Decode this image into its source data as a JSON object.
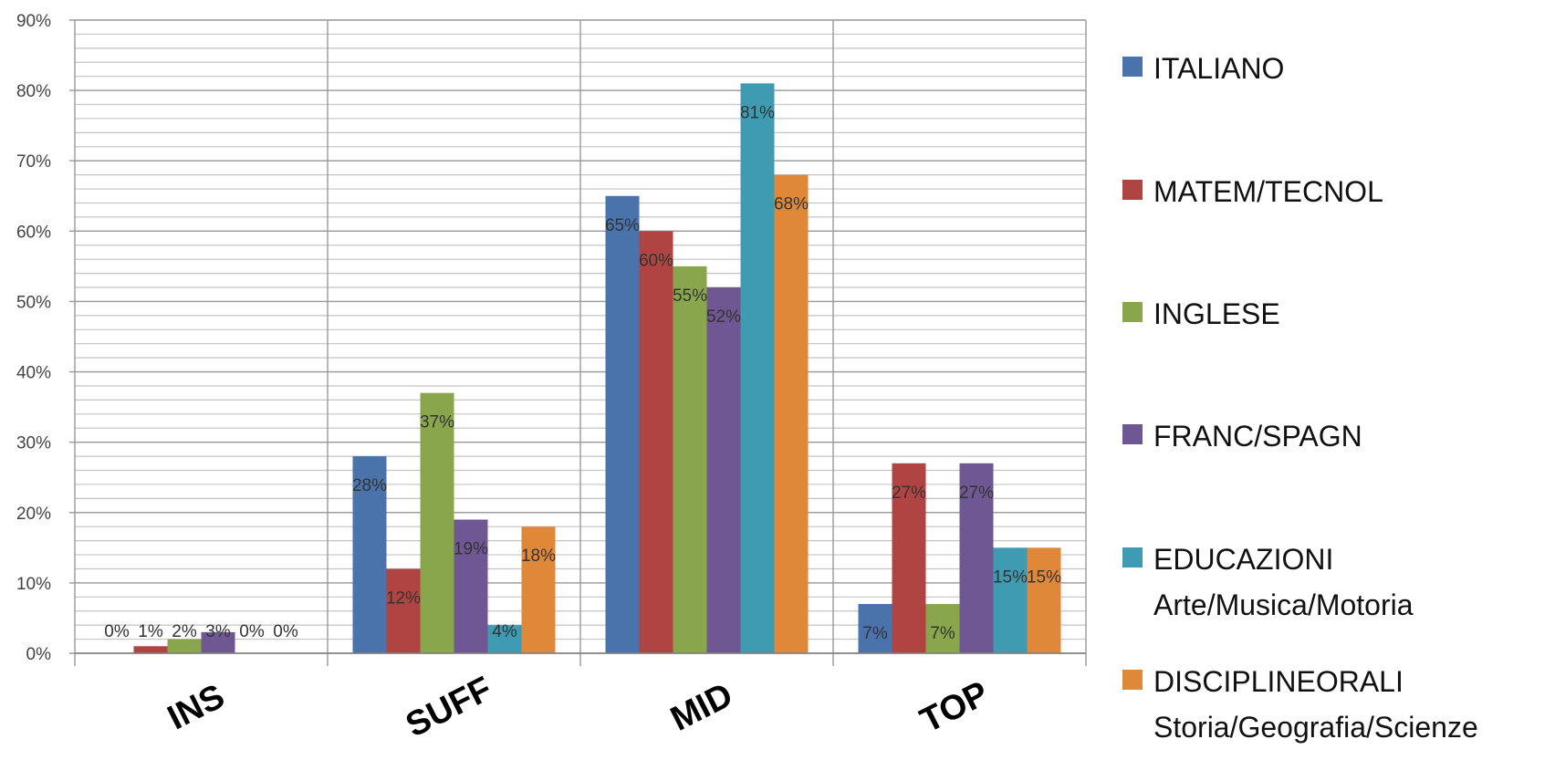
{
  "chart_data": {
    "type": "bar",
    "categories": [
      "INS",
      "SUFF",
      "MID",
      "TOP"
    ],
    "ylim": [
      0,
      90
    ],
    "y_ticks": [
      "0%",
      "10%",
      "20%",
      "30%",
      "40%",
      "50%",
      "60%",
      "70%",
      "80%",
      "90%"
    ],
    "grid": true,
    "legend_position": "right",
    "series": [
      {
        "name": "ITALIANO",
        "name_line2": "",
        "color": "#4a73ab",
        "values": [
          0,
          28,
          65,
          7
        ],
        "labels": [
          "0%",
          "28%",
          "65%",
          "7%"
        ]
      },
      {
        "name": "MATEM/TECNOL",
        "name_line2": "",
        "color": "#b04442",
        "values": [
          1,
          12,
          60,
          27
        ],
        "labels": [
          "1%",
          "12%",
          "60%",
          "27%"
        ]
      },
      {
        "name": "INGLESE",
        "name_line2": "",
        "color": "#8aa64d",
        "values": [
          2,
          37,
          55,
          7
        ],
        "labels": [
          "2%",
          "37%",
          "55%",
          "7%"
        ]
      },
      {
        "name": "FRANC/SPAGN",
        "name_line2": "",
        "color": "#6e5792",
        "values": [
          3,
          19,
          52,
          27
        ],
        "labels": [
          "3%",
          "19%",
          "52%",
          "27%"
        ]
      },
      {
        "name": "EDUCAZIONI",
        "name_line2": "Arte/Musica/Motoria",
        "color": "#3e9bb2",
        "values": [
          0,
          4,
          81,
          15
        ],
        "labels": [
          "0%",
          "4%",
          "81%",
          "15%"
        ]
      },
      {
        "name": "DISCIPLINEORALI",
        "name_line2": "Storia/Geografia/Scienze",
        "color": "#e0883a",
        "values": [
          0,
          18,
          68,
          15
        ],
        "labels": [
          "0%",
          "18%",
          "68%",
          "15%"
        ]
      }
    ]
  }
}
